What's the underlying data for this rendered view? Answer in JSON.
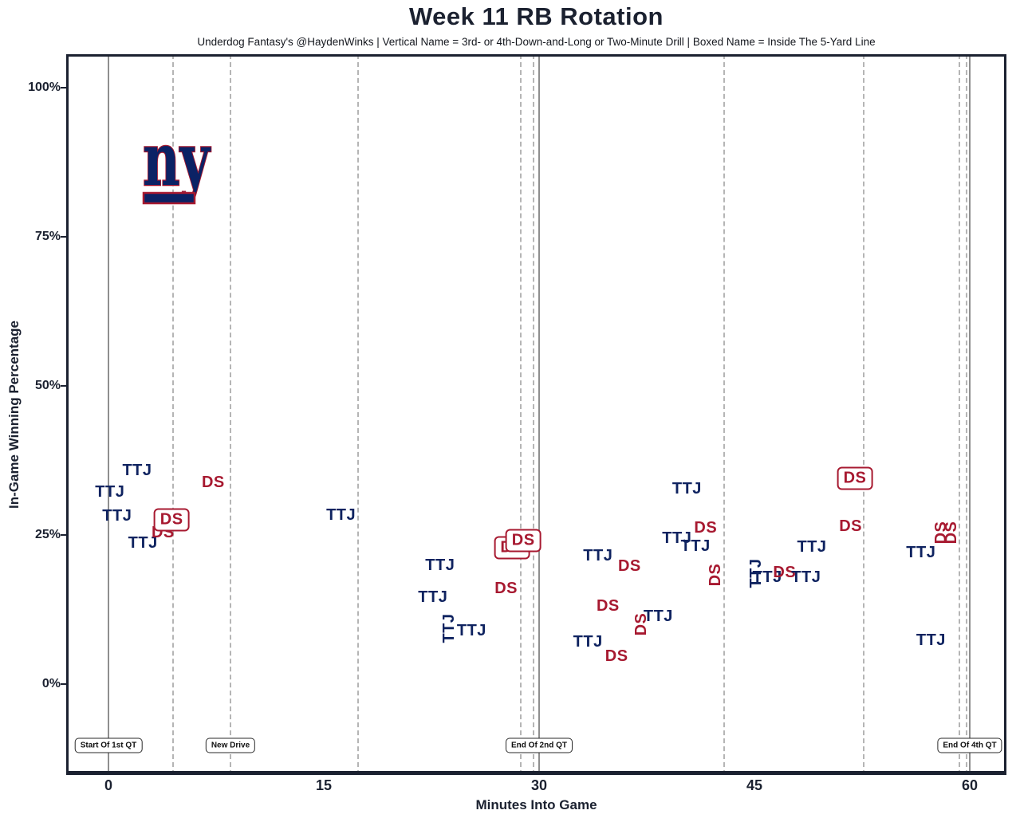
{
  "header": {
    "title": "Week 11 RB Rotation",
    "subtitle": "Underdog Fantasy's @HaydenWinks | Vertical Name = 3rd- or 4th-Down-and-Long or Two-Minute Drill | Boxed Name = Inside The 5-Yard Line"
  },
  "logo": {
    "team": "ny-giants",
    "text": "ny"
  },
  "colors": {
    "navy": "#0f2360",
    "red": "#a71930",
    "axis": "#1b2130",
    "solid_line": "#8f8f8f",
    "dashed_line": "#b5b5b5"
  },
  "chart_data": {
    "type": "scatter",
    "title": "Week 11 RB Rotation",
    "xlabel": "Minutes Into Game",
    "ylabel": "In-Game Winning Percentage",
    "xlim": [
      -2.9,
      62.6
    ],
    "ylim": [
      -15,
      105.5
    ],
    "grid": false,
    "x_ticks": [
      {
        "value": 0,
        "label": "0"
      },
      {
        "value": 15,
        "label": "15"
      },
      {
        "value": 30,
        "label": "30"
      },
      {
        "value": 45,
        "label": "45"
      },
      {
        "value": 60,
        "label": "60"
      }
    ],
    "y_ticks": [
      {
        "value": 100,
        "label": "100%"
      },
      {
        "value": 75,
        "label": "75%"
      },
      {
        "value": 50,
        "label": "50%"
      },
      {
        "value": 25,
        "label": "25%"
      },
      {
        "value": 0,
        "label": "0%"
      }
    ],
    "event_lines": [
      {
        "x": 0,
        "style": "solid",
        "label": "Start Of 1st QT"
      },
      {
        "x": 4.5,
        "style": "dashed",
        "label": ""
      },
      {
        "x": 8.5,
        "style": "dashed",
        "label": "New Drive"
      },
      {
        "x": 17.4,
        "style": "dashed",
        "label": ""
      },
      {
        "x": 28.7,
        "style": "dashed",
        "label": ""
      },
      {
        "x": 29.6,
        "style": "dashed",
        "label": ""
      },
      {
        "x": 30,
        "style": "solid",
        "label": "End Of 2nd QT"
      },
      {
        "x": 42.9,
        "style": "dashed",
        "label": ""
      },
      {
        "x": 52.6,
        "style": "dashed",
        "label": ""
      },
      {
        "x": 59.3,
        "style": "dashed",
        "label": ""
      },
      {
        "x": 59.8,
        "style": "dashed",
        "label": ""
      },
      {
        "x": 60,
        "style": "solid",
        "label": "End Of 4th QT"
      }
    ],
    "points": [
      {
        "label": "TTJ",
        "x": 2.0,
        "y": 35.8,
        "color": "navy",
        "vertical": false,
        "boxed": false
      },
      {
        "label": "TTJ",
        "x": 0.1,
        "y": 32.2,
        "color": "navy",
        "vertical": false,
        "boxed": false
      },
      {
        "label": "TTJ",
        "x": 0.6,
        "y": 28.2,
        "color": "navy",
        "vertical": false,
        "boxed": false
      },
      {
        "label": "TTJ",
        "x": 2.4,
        "y": 23.7,
        "color": "navy",
        "vertical": false,
        "boxed": false
      },
      {
        "label": "DS",
        "x": 3.8,
        "y": 25.4,
        "color": "red",
        "vertical": false,
        "boxed": false
      },
      {
        "label": "DS",
        "x": 4.4,
        "y": 27.5,
        "color": "red",
        "vertical": false,
        "boxed": true
      },
      {
        "label": "DS",
        "x": 7.3,
        "y": 33.8,
        "color": "red",
        "vertical": false,
        "boxed": false
      },
      {
        "label": "TTJ",
        "x": 16.2,
        "y": 28.3,
        "color": "navy",
        "vertical": false,
        "boxed": false
      },
      {
        "label": "TTJ",
        "x": 23.1,
        "y": 19.9,
        "color": "navy",
        "vertical": false,
        "boxed": false
      },
      {
        "label": "TTJ",
        "x": 22.6,
        "y": 14.6,
        "color": "navy",
        "vertical": false,
        "boxed": false
      },
      {
        "label": "TTJ",
        "x": 23.7,
        "y": 9.4,
        "color": "navy",
        "vertical": true,
        "boxed": false
      },
      {
        "label": "TTJ",
        "x": 25.3,
        "y": 9.0,
        "color": "navy",
        "vertical": false,
        "boxed": false
      },
      {
        "label": "DS",
        "x": 27.7,
        "y": 16.0,
        "color": "red",
        "vertical": false,
        "boxed": false
      },
      {
        "label": "DS",
        "x": 28.1,
        "y": 22.9,
        "color": "red",
        "vertical": false,
        "boxed": true
      },
      {
        "label": "DS",
        "x": 28.9,
        "y": 24.1,
        "color": "red",
        "vertical": false,
        "boxed": true
      },
      {
        "label": "TTJ",
        "x": 34.1,
        "y": 21.5,
        "color": "navy",
        "vertical": false,
        "boxed": false
      },
      {
        "label": "DS",
        "x": 36.3,
        "y": 19.8,
        "color": "red",
        "vertical": false,
        "boxed": false
      },
      {
        "label": "TTJ",
        "x": 33.4,
        "y": 7.1,
        "color": "navy",
        "vertical": false,
        "boxed": false
      },
      {
        "label": "DS",
        "x": 35.4,
        "y": 4.7,
        "color": "red",
        "vertical": false,
        "boxed": false
      },
      {
        "label": "DS",
        "x": 34.8,
        "y": 13.1,
        "color": "red",
        "vertical": false,
        "boxed": false
      },
      {
        "label": "DS",
        "x": 37.1,
        "y": 10.0,
        "color": "red",
        "vertical": true,
        "boxed": false
      },
      {
        "label": "TTJ",
        "x": 38.3,
        "y": 11.4,
        "color": "navy",
        "vertical": false,
        "boxed": false
      },
      {
        "label": "TTJ",
        "x": 40.3,
        "y": 32.8,
        "color": "navy",
        "vertical": false,
        "boxed": false
      },
      {
        "label": "TTJ",
        "x": 39.6,
        "y": 24.5,
        "color": "navy",
        "vertical": false,
        "boxed": false
      },
      {
        "label": "TTJ",
        "x": 40.9,
        "y": 23.1,
        "color": "navy",
        "vertical": false,
        "boxed": false
      },
      {
        "label": "DS",
        "x": 41.6,
        "y": 26.2,
        "color": "red",
        "vertical": false,
        "boxed": false
      },
      {
        "label": "DS",
        "x": 42.3,
        "y": 18.3,
        "color": "red",
        "vertical": true,
        "boxed": false
      },
      {
        "label": "TTJ",
        "x": 45.1,
        "y": 18.6,
        "color": "navy",
        "vertical": true,
        "boxed": false
      },
      {
        "label": "TTJ",
        "x": 45.9,
        "y": 17.9,
        "color": "navy",
        "vertical": false,
        "boxed": false
      },
      {
        "label": "DS",
        "x": 47.1,
        "y": 18.7,
        "color": "red",
        "vertical": false,
        "boxed": false
      },
      {
        "label": "TTJ",
        "x": 48.6,
        "y": 17.9,
        "color": "navy",
        "vertical": false,
        "boxed": false
      },
      {
        "label": "TTJ",
        "x": 49.0,
        "y": 23.0,
        "color": "navy",
        "vertical": false,
        "boxed": false
      },
      {
        "label": "DS",
        "x": 51.7,
        "y": 26.5,
        "color": "red",
        "vertical": false,
        "boxed": false
      },
      {
        "label": "DS",
        "x": 52.0,
        "y": 34.5,
        "color": "red",
        "vertical": false,
        "boxed": true
      },
      {
        "label": "TTJ",
        "x": 56.6,
        "y": 22.1,
        "color": "navy",
        "vertical": false,
        "boxed": false
      },
      {
        "label": "DS",
        "x": 58.0,
        "y": 25.4,
        "color": "red",
        "vertical": true,
        "boxed": false
      },
      {
        "label": "DS",
        "x": 58.7,
        "y": 25.4,
        "color": "red",
        "vertical": true,
        "boxed": false
      },
      {
        "label": "TTJ",
        "x": 57.3,
        "y": 7.4,
        "color": "navy",
        "vertical": false,
        "boxed": false
      }
    ]
  }
}
